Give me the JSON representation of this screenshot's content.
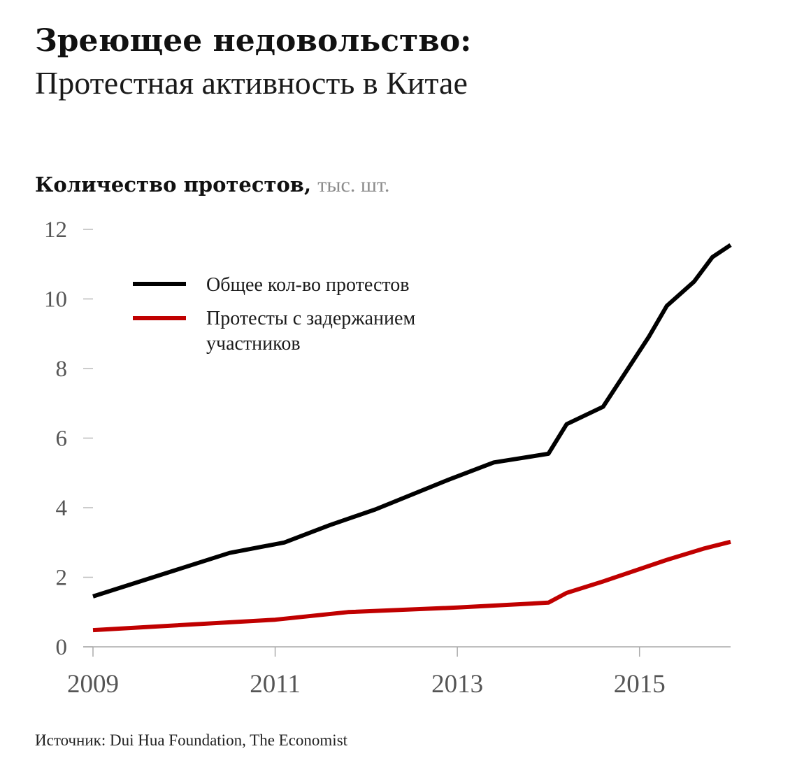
{
  "title": "Зреющее недовольство:",
  "subtitle": "Протестная активность в Китае",
  "source": "Источник: Dui Hua Foundation, The Economist",
  "chart_data": {
    "type": "line",
    "ylabel": "Количество протестов,",
    "yunit": "тыс. шт.",
    "ylim": [
      0,
      12
    ],
    "yticks": [
      0,
      2,
      4,
      6,
      8,
      10,
      12
    ],
    "xlim": [
      2009,
      2016
    ],
    "xticks": [
      2009,
      2011,
      2013,
      2015
    ],
    "grid": false,
    "legend_position": "top-left",
    "series": [
      {
        "name": "Общее кол-во протестов",
        "color": "#000000",
        "x": [
          2009.0,
          2010.5,
          2011.1,
          2011.6,
          2012.1,
          2012.9,
          2013.4,
          2014.0,
          2014.2,
          2014.6,
          2015.1,
          2015.3,
          2015.6,
          2015.8,
          2016.0
        ],
        "y": [
          1.45,
          2.7,
          3.0,
          3.5,
          3.95,
          4.8,
          5.3,
          5.55,
          6.4,
          6.9,
          8.9,
          9.8,
          10.5,
          11.2,
          11.55
        ]
      },
      {
        "name": "Протесты с задержанием участников",
        "name_lines": [
          "Протесты с задержанием",
          "участников"
        ],
        "color": "#c00000",
        "x": [
          2009.0,
          2011.0,
          2011.8,
          2013.0,
          2014.0,
          2014.2,
          2014.6,
          2015.3,
          2015.7,
          2016.0
        ],
        "y": [
          0.48,
          0.78,
          1.0,
          1.13,
          1.27,
          1.55,
          1.88,
          2.5,
          2.82,
          3.02
        ]
      }
    ]
  }
}
